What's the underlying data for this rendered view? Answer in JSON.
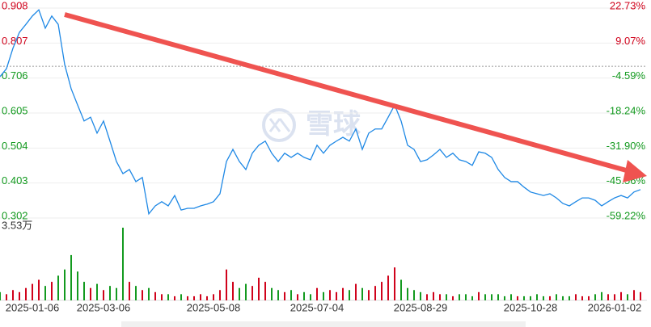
{
  "chart_data": [
    {
      "type": "line",
      "watermark": "雪球",
      "categories": [
        null,
        null,
        null,
        null,
        null,
        "2025-01-06",
        null,
        null,
        null,
        null,
        null,
        null,
        null,
        null,
        null,
        null,
        "2025-03-06",
        null,
        null,
        null,
        null,
        null,
        null,
        null,
        null,
        null,
        null,
        null,
        null,
        null,
        null,
        null,
        null,
        "2025-05-08",
        null,
        null,
        null,
        null,
        null,
        null,
        null,
        null,
        null,
        null,
        null,
        null,
        null,
        null,
        null,
        "2025-07-04",
        null,
        null,
        null,
        null,
        null,
        null,
        null,
        null,
        null,
        null,
        null,
        null,
        null,
        null,
        null,
        "2025-08-29",
        null,
        null,
        null,
        null,
        null,
        null,
        null,
        null,
        null,
        null,
        null,
        null,
        null,
        null,
        null,
        null,
        "2025-10-28",
        null,
        null,
        null,
        null,
        null,
        null,
        null,
        null,
        null,
        null,
        null,
        null,
        "2026-01-02",
        null,
        null,
        null,
        null
      ],
      "values": [
        0.71,
        0.733,
        0.792,
        0.838,
        0.861,
        0.885,
        0.903,
        0.85,
        0.885,
        0.861,
        0.745,
        0.675,
        0.628,
        0.582,
        0.593,
        0.547,
        0.582,
        0.524,
        0.465,
        0.43,
        0.442,
        0.407,
        0.419,
        0.314,
        0.337,
        0.349,
        0.337,
        0.367,
        0.325,
        0.33,
        0.33,
        0.337,
        0.342,
        0.349,
        0.372,
        0.465,
        0.5,
        0.465,
        0.442,
        0.489,
        0.512,
        0.524,
        0.489,
        0.465,
        0.489,
        0.477,
        0.489,
        0.477,
        0.47,
        0.512,
        0.489,
        0.512,
        0.524,
        0.535,
        0.524,
        0.559,
        0.5,
        0.547,
        0.559,
        0.559,
        0.593,
        0.628,
        0.582,
        0.512,
        0.5,
        0.465,
        0.47,
        0.484,
        0.5,
        0.477,
        0.489,
        0.47,
        0.465,
        0.454,
        0.493,
        0.489,
        0.477,
        0.442,
        0.419,
        0.407,
        0.407,
        0.391,
        0.377,
        0.372,
        0.367,
        0.372,
        0.36,
        0.344,
        0.337,
        0.349,
        0.36,
        0.36,
        0.353,
        0.337,
        0.349,
        0.36,
        0.367,
        0.36,
        0.377,
        0.384
      ],
      "color": "#1e88e5",
      "ylim": [
        0.302,
        0.908
      ],
      "yticks": [
        0.908,
        0.807,
        0.706,
        0.605,
        0.504,
        0.403,
        0.302
      ],
      "y2lim": [
        -59.22,
        22.73
      ],
      "y2ticks": [
        {
          "value": 22.73,
          "label": "22.73%"
        },
        {
          "value": 9.07,
          "label": "9.07%"
        },
        {
          "value": -4.59,
          "label": "-4.59%"
        },
        {
          "value": -18.24,
          "label": "-18.24%"
        },
        {
          "value": -31.9,
          "label": "-31.90%"
        },
        {
          "value": -45.56,
          "label": "-45.56%"
        },
        {
          "value": -59.22,
          "label": "-59.22%"
        }
      ],
      "ref_line": 0.74,
      "up_color": "#d0021b",
      "down_color": "#139a1f",
      "grid": true
    },
    {
      "type": "bar",
      "values": [
        0.4,
        0.3,
        0.5,
        0.4,
        0.6,
        0.8,
        1.0,
        0.7,
        0.9,
        1.2,
        1.5,
        2.2,
        1.4,
        0.9,
        0.6,
        0.8,
        0.5,
        0.7,
        0.6,
        3.53,
        0.9,
        0.7,
        0.5,
        0.6,
        0.4,
        0.3,
        0.3,
        0.2,
        0.3,
        0.2,
        0.2,
        0.3,
        0.2,
        0.3,
        0.5,
        1.5,
        0.9,
        0.6,
        0.8,
        0.7,
        1.1,
        0.9,
        0.6,
        0.5,
        0.4,
        0.5,
        0.3,
        0.4,
        0.3,
        0.6,
        0.4,
        0.5,
        0.4,
        0.6,
        0.5,
        0.8,
        0.6,
        0.5,
        0.7,
        0.9,
        1.2,
        1.6,
        1.0,
        0.6,
        0.5,
        0.4,
        0.3,
        0.4,
        0.3,
        0.3,
        0.2,
        0.3,
        0.3,
        0.2,
        0.4,
        0.3,
        0.3,
        0.3,
        0.2,
        0.3,
        0.2,
        0.2,
        0.2,
        0.3,
        0.2,
        0.2,
        0.3,
        0.2,
        0.2,
        0.3,
        0.2,
        0.2,
        0.3,
        0.4,
        0.3,
        0.3,
        0.4,
        0.3,
        0.5,
        0.4
      ],
      "ylim": [
        0,
        3.53
      ],
      "yticks": [
        {
          "value": 3.53,
          "label": "3.53万"
        }
      ],
      "up_color": "#d0021b",
      "down_color": "#139a1f"
    }
  ]
}
